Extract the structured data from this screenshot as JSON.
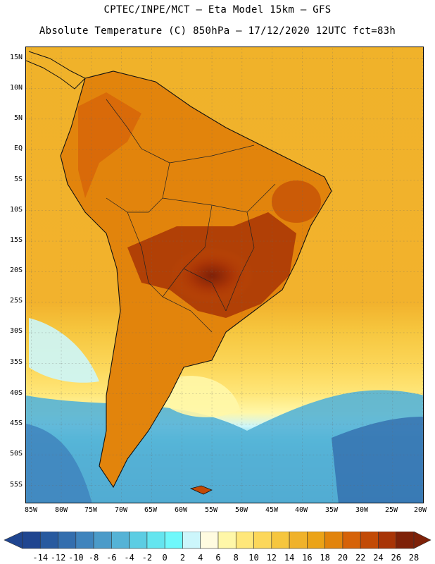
{
  "title": {
    "line1": "CPTEC/INPE/MCT –  Eta Model 15km – GFS",
    "line2": "Absolute Temperature (C) 850hPa – 17/12/2020 12UTC fct=83h"
  },
  "map": {
    "region": "South America",
    "variable": "Absolute Temperature 850hPa",
    "lat_labels": [
      "15N",
      "10N",
      "5N",
      "EQ",
      "5S",
      "10S",
      "15S",
      "20S",
      "25S",
      "30S",
      "35S",
      "40S",
      "45S",
      "50S",
      "55S"
    ],
    "lon_labels": [
      "85W",
      "80W",
      "75W",
      "70W",
      "65W",
      "60W",
      "55W",
      "50W",
      "45W",
      "40W",
      "35W",
      "30W",
      "25W",
      "20W"
    ]
  },
  "colorbar": {
    "labels": [
      "-14",
      "-12",
      "-10",
      "-8",
      "-6",
      "-4",
      "-2",
      "0",
      "2",
      "4",
      "6",
      "8",
      "10",
      "12",
      "14",
      "16",
      "18",
      "20",
      "22",
      "24",
      "26",
      "28"
    ],
    "colors": [
      "#1f4590",
      "#285a9f",
      "#336eae",
      "#3f84bd",
      "#4b9bc9",
      "#55b3d6",
      "#5ccde3",
      "#64e5ef",
      "#6ff8fb",
      "#ccf6fb",
      "#fffbe0",
      "#fff7a8",
      "#ffe77a",
      "#fcd75a",
      "#f6c63e",
      "#f0b22a",
      "#eba317",
      "#e2840c",
      "#d66208",
      "#c24a06",
      "#a83406",
      "#7e2108"
    ]
  }
}
